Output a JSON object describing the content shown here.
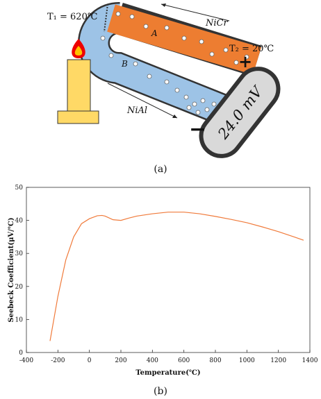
{
  "diagram": {
    "t1": "T₁ = 620℃",
    "t2": "T₂ = 20℃",
    "wire_a": "A",
    "wire_b": "B",
    "nicr": "NiCr",
    "nial": "NiAl",
    "plus": "+",
    "minus": "−",
    "meter": "24.0 mV",
    "caption": "(a)"
  },
  "chart_data": {
    "type": "line",
    "caption": "(b)",
    "xlabel": "Temperature(℃)",
    "ylabel": "Seebeck Coefficient(μV/℃)",
    "x": [
      -250,
      -200,
      -150,
      -100,
      -50,
      0,
      50,
      80,
      100,
      150,
      200,
      250,
      300,
      400,
      500,
      600,
      700,
      800,
      900,
      1000,
      1100,
      1200,
      1300,
      1360
    ],
    "series": [
      {
        "color": "#f07a3a",
        "values": [
          3.5,
          17,
          28,
          35,
          39,
          40.5,
          41.4,
          41.5,
          41.3,
          40.2,
          40,
          40.7,
          41.3,
          42,
          42.5,
          42.5,
          42,
          41.2,
          40.3,
          39.3,
          38,
          36.6,
          35,
          34
        ]
      }
    ],
    "xlim": [
      -400,
      1400
    ],
    "ylim": [
      0,
      50
    ],
    "xticks": [
      -400,
      -200,
      0,
      200,
      400,
      600,
      800,
      1000,
      1200,
      1400
    ],
    "yticks": [
      0,
      10,
      20,
      30,
      40,
      50
    ]
  }
}
